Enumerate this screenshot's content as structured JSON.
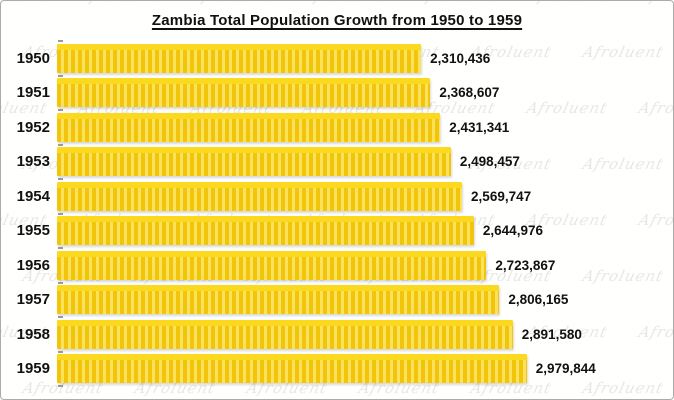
{
  "title": "Zambia Total Population Growth from 1950 to 1959",
  "watermark_text": "Afroluent",
  "colors": {
    "bar_gold": "#F3C50A",
    "bar_stripe": "#FBE25C",
    "bar_cap": "#FCD91F",
    "text": "#111111",
    "watermark": "#e7e7e3",
    "tick": "#9a9a9a",
    "frame_border": "#ababab"
  },
  "chart_data": {
    "type": "bar",
    "orientation": "horizontal",
    "title": "Zambia Total Population Growth from 1950 to 1959",
    "categories": [
      "1950",
      "1951",
      "1952",
      "1953",
      "1954",
      "1955",
      "1956",
      "1957",
      "1958",
      "1959"
    ],
    "values": [
      2310436,
      2368607,
      2431341,
      2498457,
      2569747,
      2644976,
      2723867,
      2806165,
      2891580,
      2979844
    ],
    "value_labels": [
      "2,310,436",
      "2,368,607",
      "2,431,341",
      "2,498,457",
      "2,569,747",
      "2,644,976",
      "2,723,867",
      "2,806,165",
      "2,891,580",
      "2,979,844"
    ],
    "xlabel": "",
    "ylabel": "",
    "xlim": [
      0,
      2979844
    ],
    "grid": false,
    "legend": false,
    "value_labels_shown": true,
    "bar_color": "#F3C50A"
  }
}
